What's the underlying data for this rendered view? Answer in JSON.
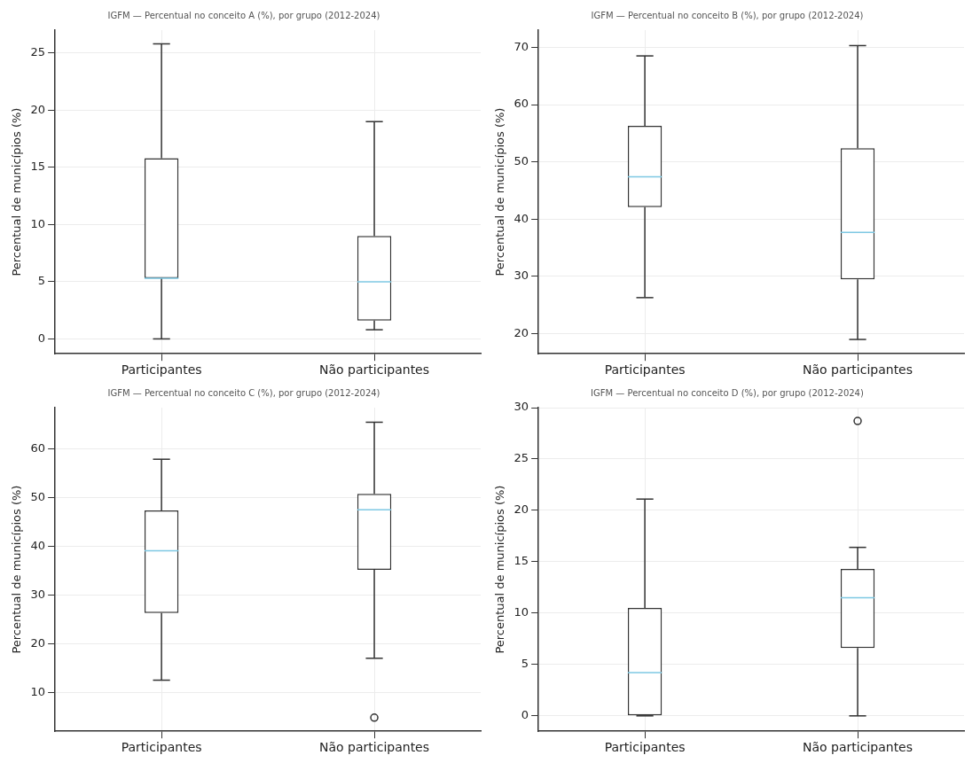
{
  "chart_data": [
    {
      "type": "box",
      "title": "IGFM — Percentual no conceito A (%), por grupo (2012-2024)",
      "ylabel": "Percentual de municípios (%)",
      "categories": [
        "Participantes",
        "Não participantes"
      ],
      "ylim": [
        -1.3,
        27
      ],
      "yticks": [
        0,
        5,
        10,
        15,
        20,
        25
      ],
      "grid": true,
      "boxes": [
        {
          "low": 0,
          "q1": 5.3,
          "median": 5.3,
          "q3": 15.8,
          "high": 25.8
        },
        {
          "low": 0.8,
          "q1": 1.6,
          "median": 5.0,
          "q3": 9.0,
          "high": 19.0
        }
      ]
    },
    {
      "type": "box",
      "title": "IGFM — Percentual no conceito B (%), por grupo (2012-2024)",
      "ylabel": "Percentual de municípios (%)",
      "categories": [
        "Participantes",
        "Não participantes"
      ],
      "ylim": [
        16.5,
        73
      ],
      "yticks": [
        20,
        30,
        40,
        50,
        60,
        70
      ],
      "grid": true,
      "boxes": [
        {
          "low": 26.3,
          "q1": 42.1,
          "median": 47.4,
          "q3": 56.3,
          "high": 68.5
        },
        {
          "low": 19.0,
          "q1": 29.5,
          "median": 37.7,
          "q3": 52.4,
          "high": 70.3
        }
      ]
    },
    {
      "type": "box",
      "title": "IGFM — Percentual no conceito C (%), por grupo (2012-2024)",
      "ylabel": "Percentual de municípios (%)",
      "categories": [
        "Participantes",
        "Não participantes"
      ],
      "ylim": [
        2,
        68.5
      ],
      "yticks": [
        10,
        20,
        30,
        40,
        50,
        60
      ],
      "grid": true,
      "boxes": [
        {
          "low": 12.5,
          "q1": 26.3,
          "median": 39.1,
          "q3": 47.4,
          "high": 57.9
        },
        {
          "low": 17.0,
          "q1": 35.2,
          "median": 47.5,
          "q3": 50.8,
          "high": 65.5,
          "outliers": [
            4.8
          ]
        }
      ]
    },
    {
      "type": "box",
      "title": "IGFM — Percentual no conceito D (%), por grupo (2012-2024)",
      "ylabel": "Percentual de municípios (%)",
      "categories": [
        "Participantes",
        "Não participantes"
      ],
      "ylim": [
        -1.5,
        30
      ],
      "yticks": [
        0,
        5,
        10,
        15,
        20,
        25,
        30
      ],
      "grid": true,
      "boxes": [
        {
          "low": 0,
          "q1": 0,
          "median": 4.2,
          "q3": 10.5,
          "high": 21.1
        },
        {
          "low": 0,
          "q1": 6.6,
          "median": 11.5,
          "q3": 14.3,
          "high": 16.4,
          "outliers": [
            28.7
          ]
        }
      ]
    }
  ]
}
